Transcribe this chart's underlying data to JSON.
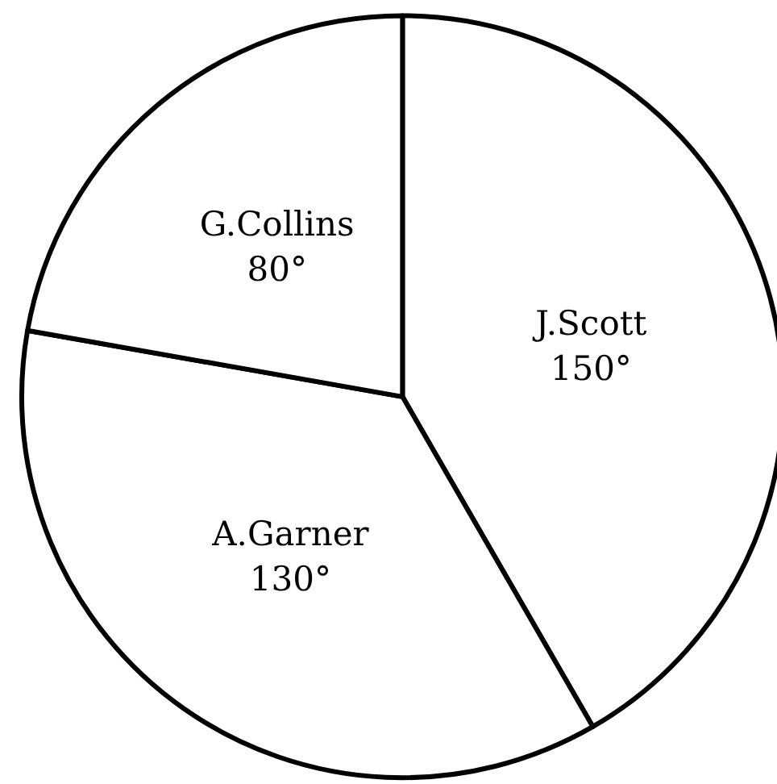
{
  "chart_data": {
    "type": "pie",
    "categories": [
      "J.Scott",
      "A.Garner",
      "G.Collins"
    ],
    "values": [
      150,
      130,
      80
    ],
    "value_labels": [
      "150°",
      "130°",
      "80°"
    ],
    "colors": [
      "#ffffff",
      "#ffffff",
      "#ffffff"
    ],
    "legend": false
  }
}
